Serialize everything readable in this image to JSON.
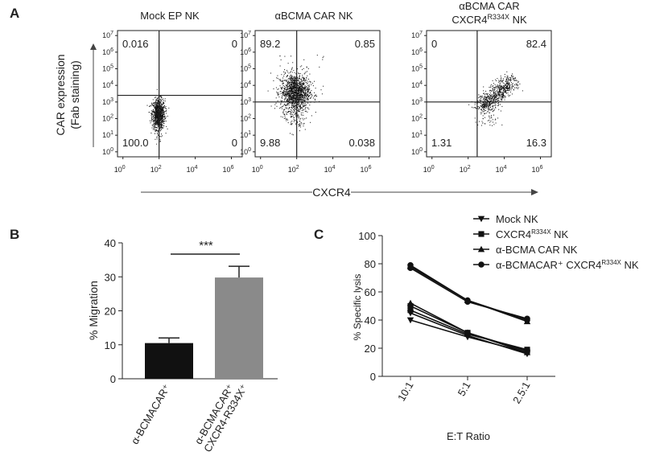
{
  "panel_labels": {
    "a": "A",
    "b": "B",
    "c": "C"
  },
  "flow": {
    "y_axis_label": [
      "CAR expression",
      "(Fab staining)"
    ],
    "x_axis_label": "CXCR4",
    "tick_exponents": [
      "0",
      "2",
      "4",
      "6"
    ],
    "y_tick_exponents": [
      "0",
      "1",
      "2",
      "3",
      "4",
      "5",
      "6",
      "7"
    ],
    "tick_base": "10",
    "panels": [
      {
        "title": "Mock EP NK",
        "title_sup": "",
        "title_suffix": "",
        "title_line1": "",
        "quadrants": {
          "ul": "0.016",
          "ur": "0",
          "ll": "100.0",
          "lr": "0"
        },
        "gate": {
          "x": 2.0,
          "y": 3.4
        },
        "population": "mock"
      },
      {
        "title": "αBCMA CAR NK",
        "title_sup": "",
        "title_suffix": "",
        "title_line1": "",
        "quadrants": {
          "ul": "89.2",
          "ur": "0.85",
          "ll": "9.88",
          "lr": "0.038"
        },
        "gate": {
          "x": 2.0,
          "y": 3.0
        },
        "population": "car"
      },
      {
        "title": "CXCR4",
        "title_sup": "R334X",
        "title_suffix": " NK",
        "title_line1": "αBCMA CAR",
        "quadrants": {
          "ul": "0",
          "ur": "82.4",
          "ll": "1.31",
          "lr": "16.3"
        },
        "gate": {
          "x": 2.5,
          "y": 3.0
        },
        "population": "cxcr4"
      }
    ]
  },
  "chart_data": [
    {
      "type": "bar",
      "categories": [
        "α-BCMACAR⁺",
        "α-BCMACAR⁺ CXCR4-R334X⁺"
      ],
      "category_lines": [
        [
          "α-BCMACAR⁺"
        ],
        [
          "α-BCMACAR⁺",
          "CXCR4-R334X⁺"
        ]
      ],
      "values": [
        10.5,
        29.8
      ],
      "errors": [
        1.5,
        3.3
      ],
      "colors": [
        "#111111",
        "#8a8a8a"
      ],
      "ylabel": "% Migration",
      "ylim": [
        0,
        40
      ],
      "yticks": [
        "0",
        "10",
        "20",
        "30",
        "40"
      ],
      "significance": "***"
    },
    {
      "type": "line",
      "categories": [
        "10:1",
        "5:1",
        "2.5:1"
      ],
      "xlabel": "E:T Ratio",
      "ylabel": "% Specific lysis",
      "ylim": [
        0,
        100
      ],
      "yticks": [
        "0",
        "20",
        "40",
        "60",
        "80",
        "100"
      ],
      "series": [
        {
          "name": "Mock NK",
          "name_sup": "",
          "name_suffix": "",
          "marker": "triangle-down",
          "replicates": [
            [
              40,
              28,
              17
            ],
            [
              45,
              29,
              16
            ]
          ]
        },
        {
          "name": "CXCR4",
          "name_sup": "R334X",
          "name_suffix": " NK",
          "marker": "square",
          "replicates": [
            [
              47,
              30,
              19
            ],
            [
              50,
              31,
              18
            ]
          ]
        },
        {
          "name": "α-BCMA CAR NK",
          "name_sup": "",
          "name_suffix": "",
          "marker": "triangle-up",
          "replicates": [
            [
              52,
              31,
              17
            ],
            [
              78,
              54,
              39
            ]
          ]
        },
        {
          "name": "α-BCMACAR⁺ CXCR4",
          "name_sup": "R334X",
          "name_suffix": " NK",
          "marker": "circle",
          "replicates": [
            [
              79,
              54,
              40
            ],
            [
              77,
              53,
              41
            ]
          ]
        }
      ]
    }
  ]
}
